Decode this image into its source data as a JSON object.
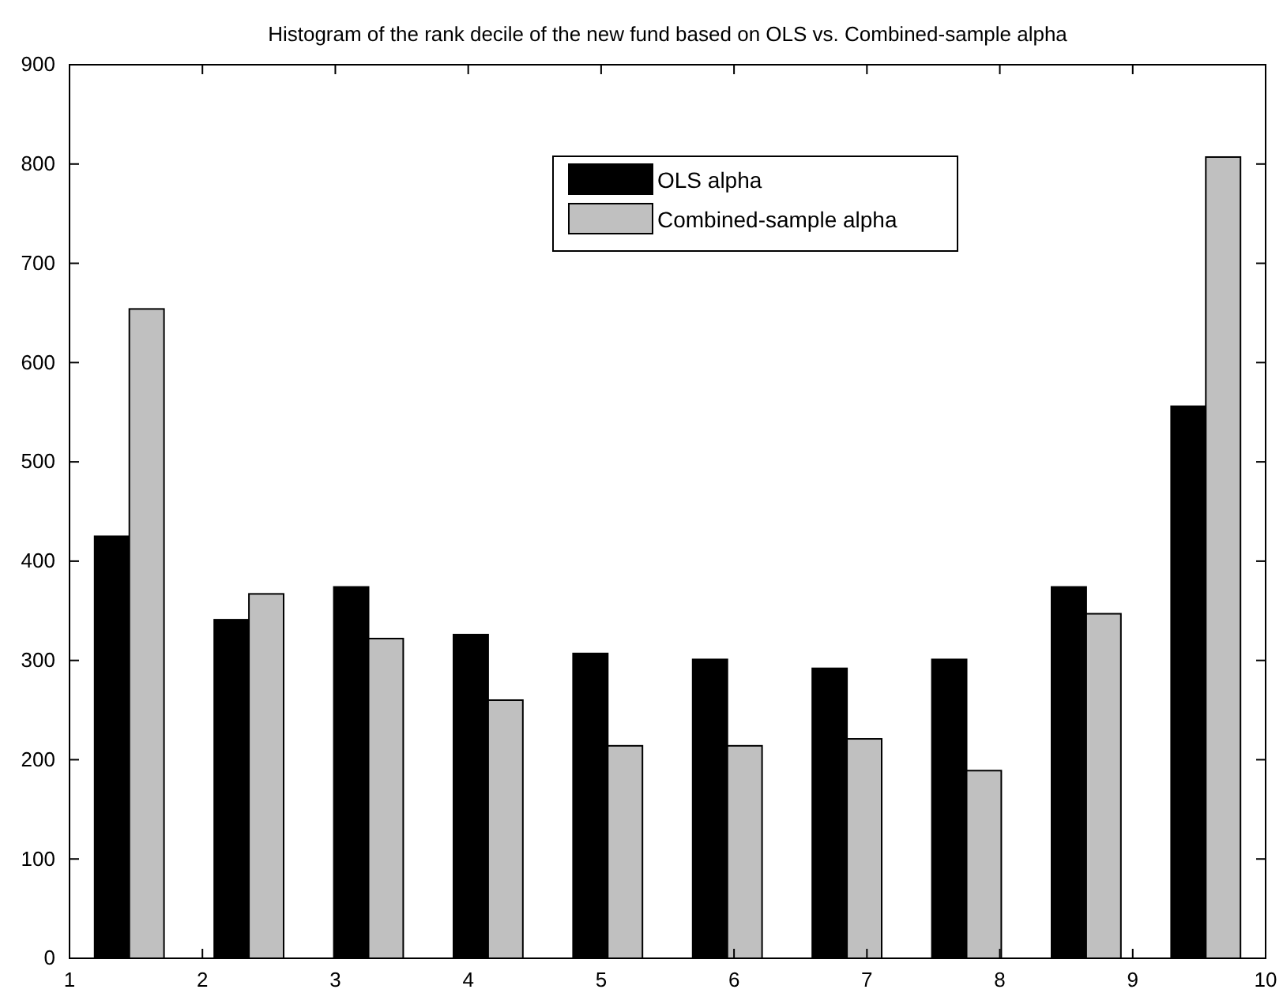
{
  "chart_data": {
    "type": "bar",
    "title": "Histogram of the rank decile of the new fund based on OLS vs. Combined-sample alpha",
    "x": [
      1.45,
      2.35,
      3.25,
      4.15,
      5.05,
      5.95,
      6.85,
      7.75,
      8.65,
      9.55
    ],
    "series": [
      {
        "name": "OLS alpha",
        "color": "#000000",
        "values": [
          425,
          341,
          374,
          326,
          307,
          301,
          292,
          301,
          374,
          556
        ]
      },
      {
        "name": "Combined-sample alpha",
        "color": "#c0c0c0",
        "values": [
          654,
          367,
          322,
          260,
          214,
          214,
          221,
          189,
          347,
          807
        ]
      }
    ],
    "xlim": [
      1,
      10
    ],
    "xticks": [
      1,
      2,
      3,
      4,
      5,
      6,
      7,
      8,
      9,
      10
    ],
    "ylim": [
      0,
      900
    ],
    "yticks": [
      0,
      100,
      200,
      300,
      400,
      500,
      600,
      700,
      800,
      900
    ],
    "grid": false,
    "legend": "top"
  }
}
